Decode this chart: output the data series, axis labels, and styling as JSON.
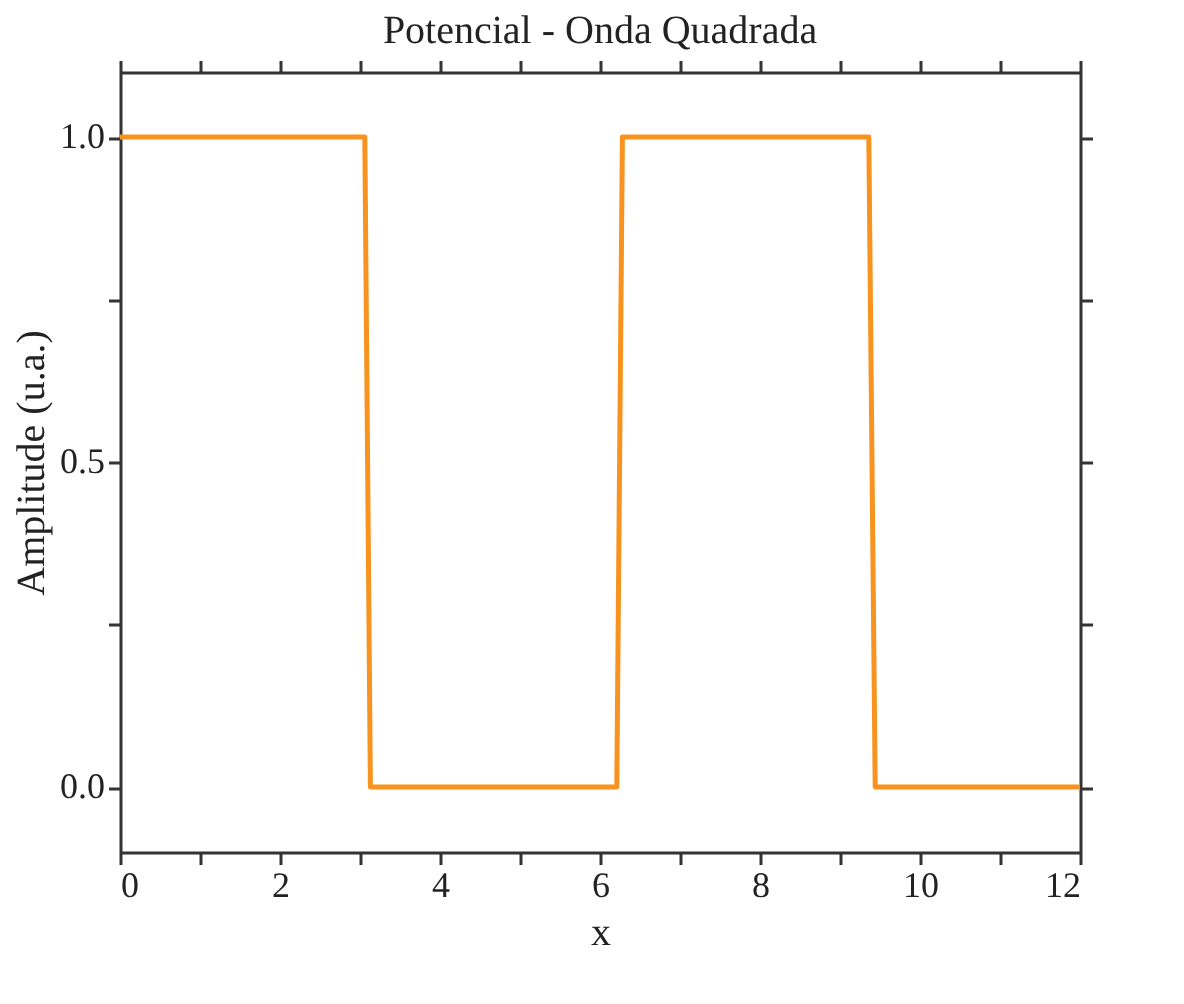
{
  "chart_data": {
    "type": "line",
    "title": "Potencial - Onda Quadrada",
    "xlabel": "x",
    "ylabel": "Amplitude (u.a.)",
    "x": [
      0,
      3.06,
      3.13,
      6.21,
      6.28,
      9.36,
      9.44,
      12
    ],
    "series": [
      {
        "color": "#f7931e",
        "values": [
          1,
          1,
          0,
          0,
          1,
          1,
          0,
          0
        ]
      }
    ],
    "xlim": [
      0,
      12
    ],
    "xticks": [
      0,
      {
        "value": 1,
        "label": null
      },
      2,
      {
        "value": 3,
        "label": null
      },
      4,
      {
        "value": 5,
        "label": null
      },
      6,
      {
        "value": 7,
        "label": null
      },
      8,
      {
        "value": 9,
        "label": null
      },
      10,
      {
        "value": 11,
        "label": null
      },
      12
    ],
    "ylim": [
      -0.1,
      1.1
    ],
    "yticks": [
      {
        "value": 0,
        "label": "0.0"
      },
      {
        "value": 0.25,
        "label": null
      },
      {
        "value": 0.5,
        "label": "0.5"
      },
      {
        "value": 0.75,
        "label": null
      },
      {
        "value": 1,
        "label": "1.0"
      }
    ],
    "grid": false,
    "legend": false,
    "marker": "none",
    "line_style": "solid"
  }
}
